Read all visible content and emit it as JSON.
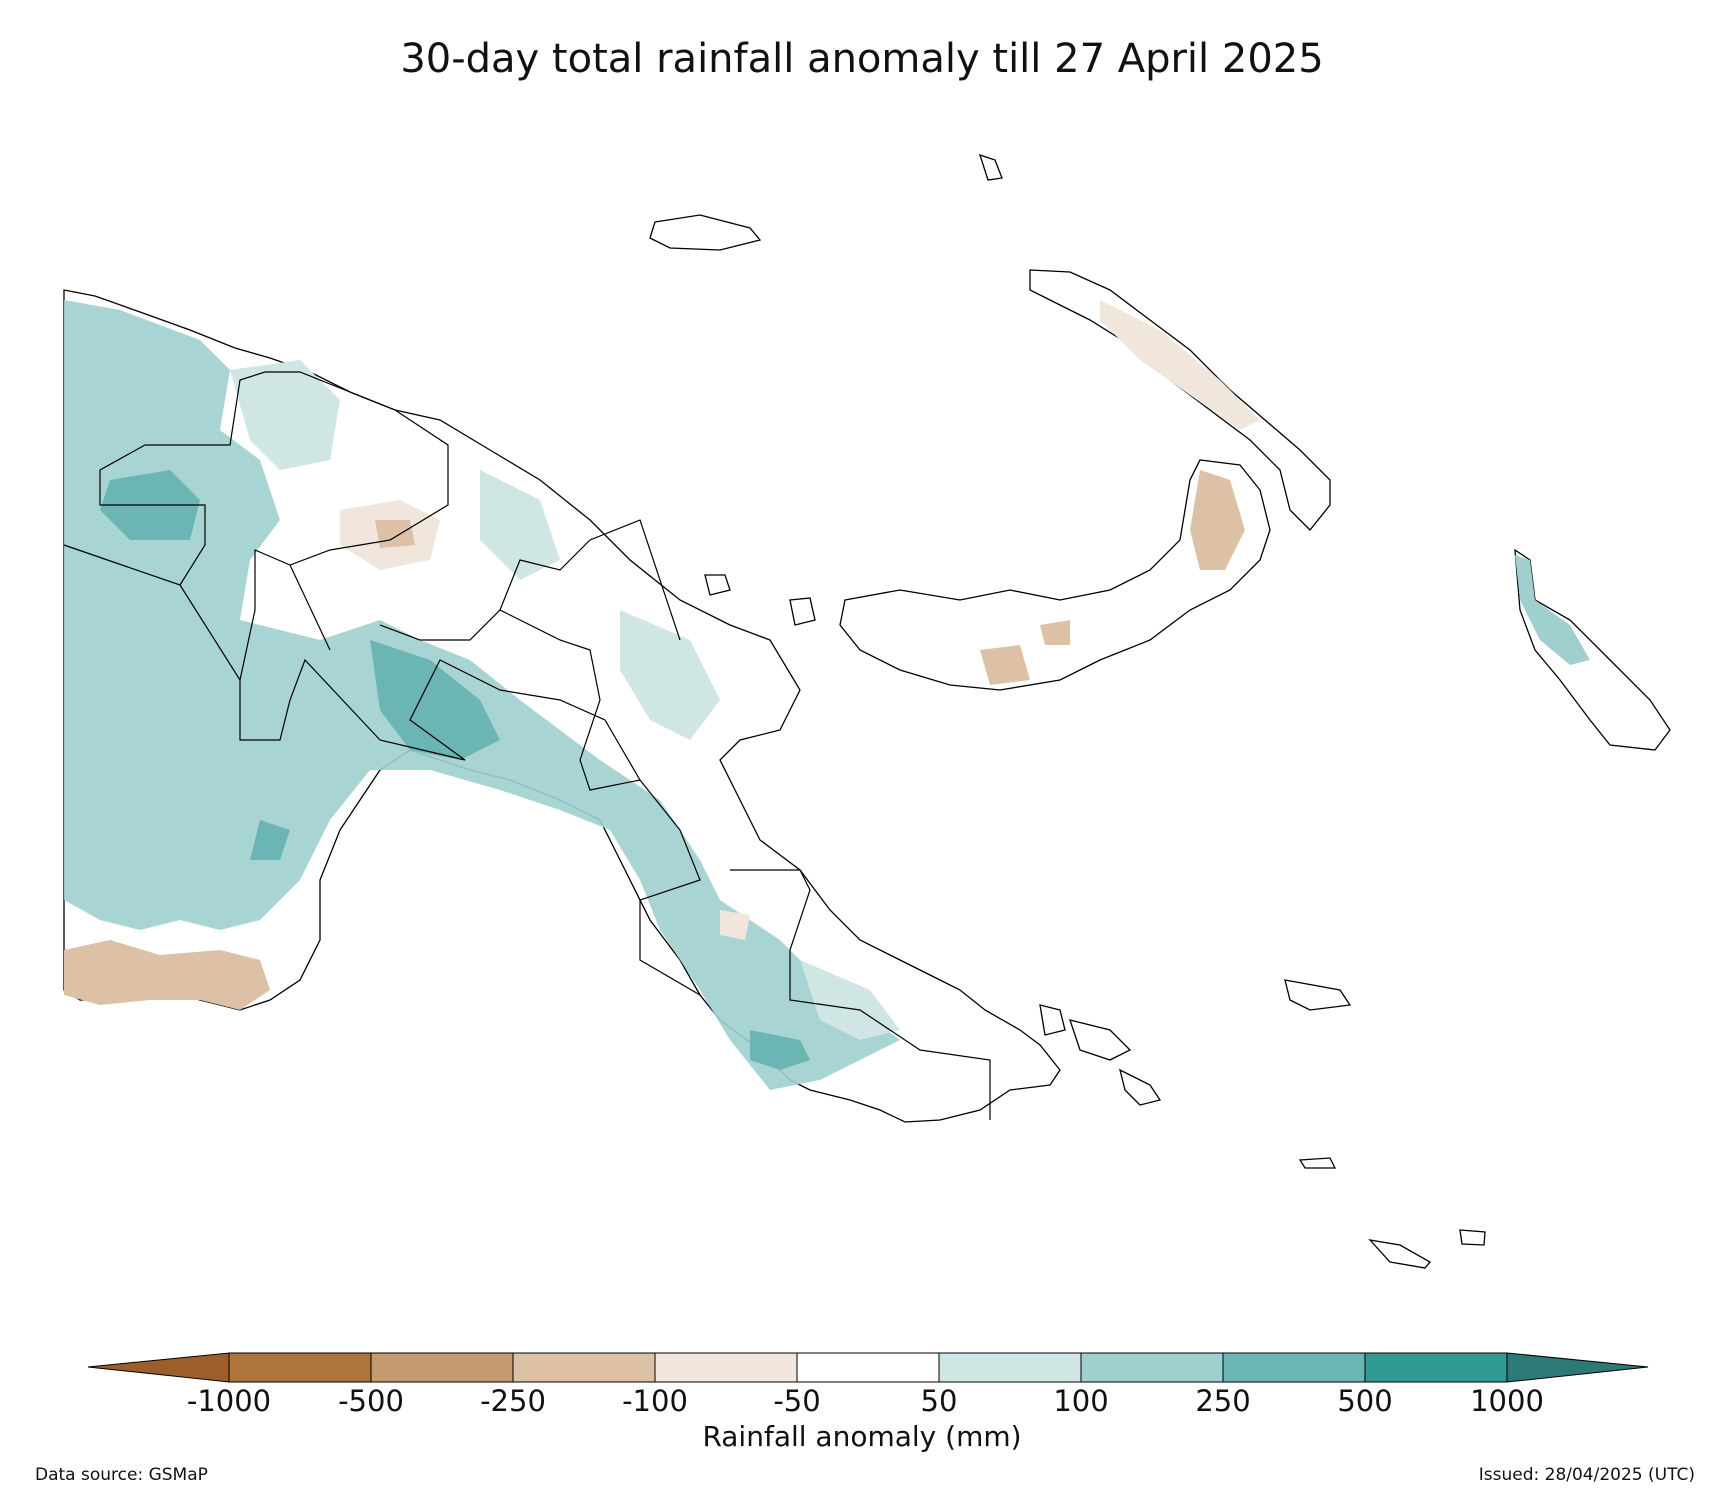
{
  "title": "30-day total rainfall anomaly till 27 April 2025",
  "colorbar": {
    "label": "Rainfall anomaly (mm)",
    "ticks": [
      "-1000",
      "-500",
      "-250",
      "-100",
      "-50",
      "50",
      "100",
      "250",
      "500",
      "1000"
    ],
    "colors": {
      "below_min": "#9c5e2a",
      "b1": "#ae7439",
      "b2": "#c49a70",
      "b3": "#dcc1a6",
      "b4": "#f1e6dc",
      "b5": "#ffffff",
      "b6": "#cfe6e5",
      "b7": "#9fd0cf",
      "b8": "#6bb5b4",
      "b9": "#2f9a94",
      "above_max": "#2b7a76"
    }
  },
  "footer": {
    "data_source": "Data source: GSMaP",
    "issued": "Issued: 28/04/2025 (UTC)"
  }
}
